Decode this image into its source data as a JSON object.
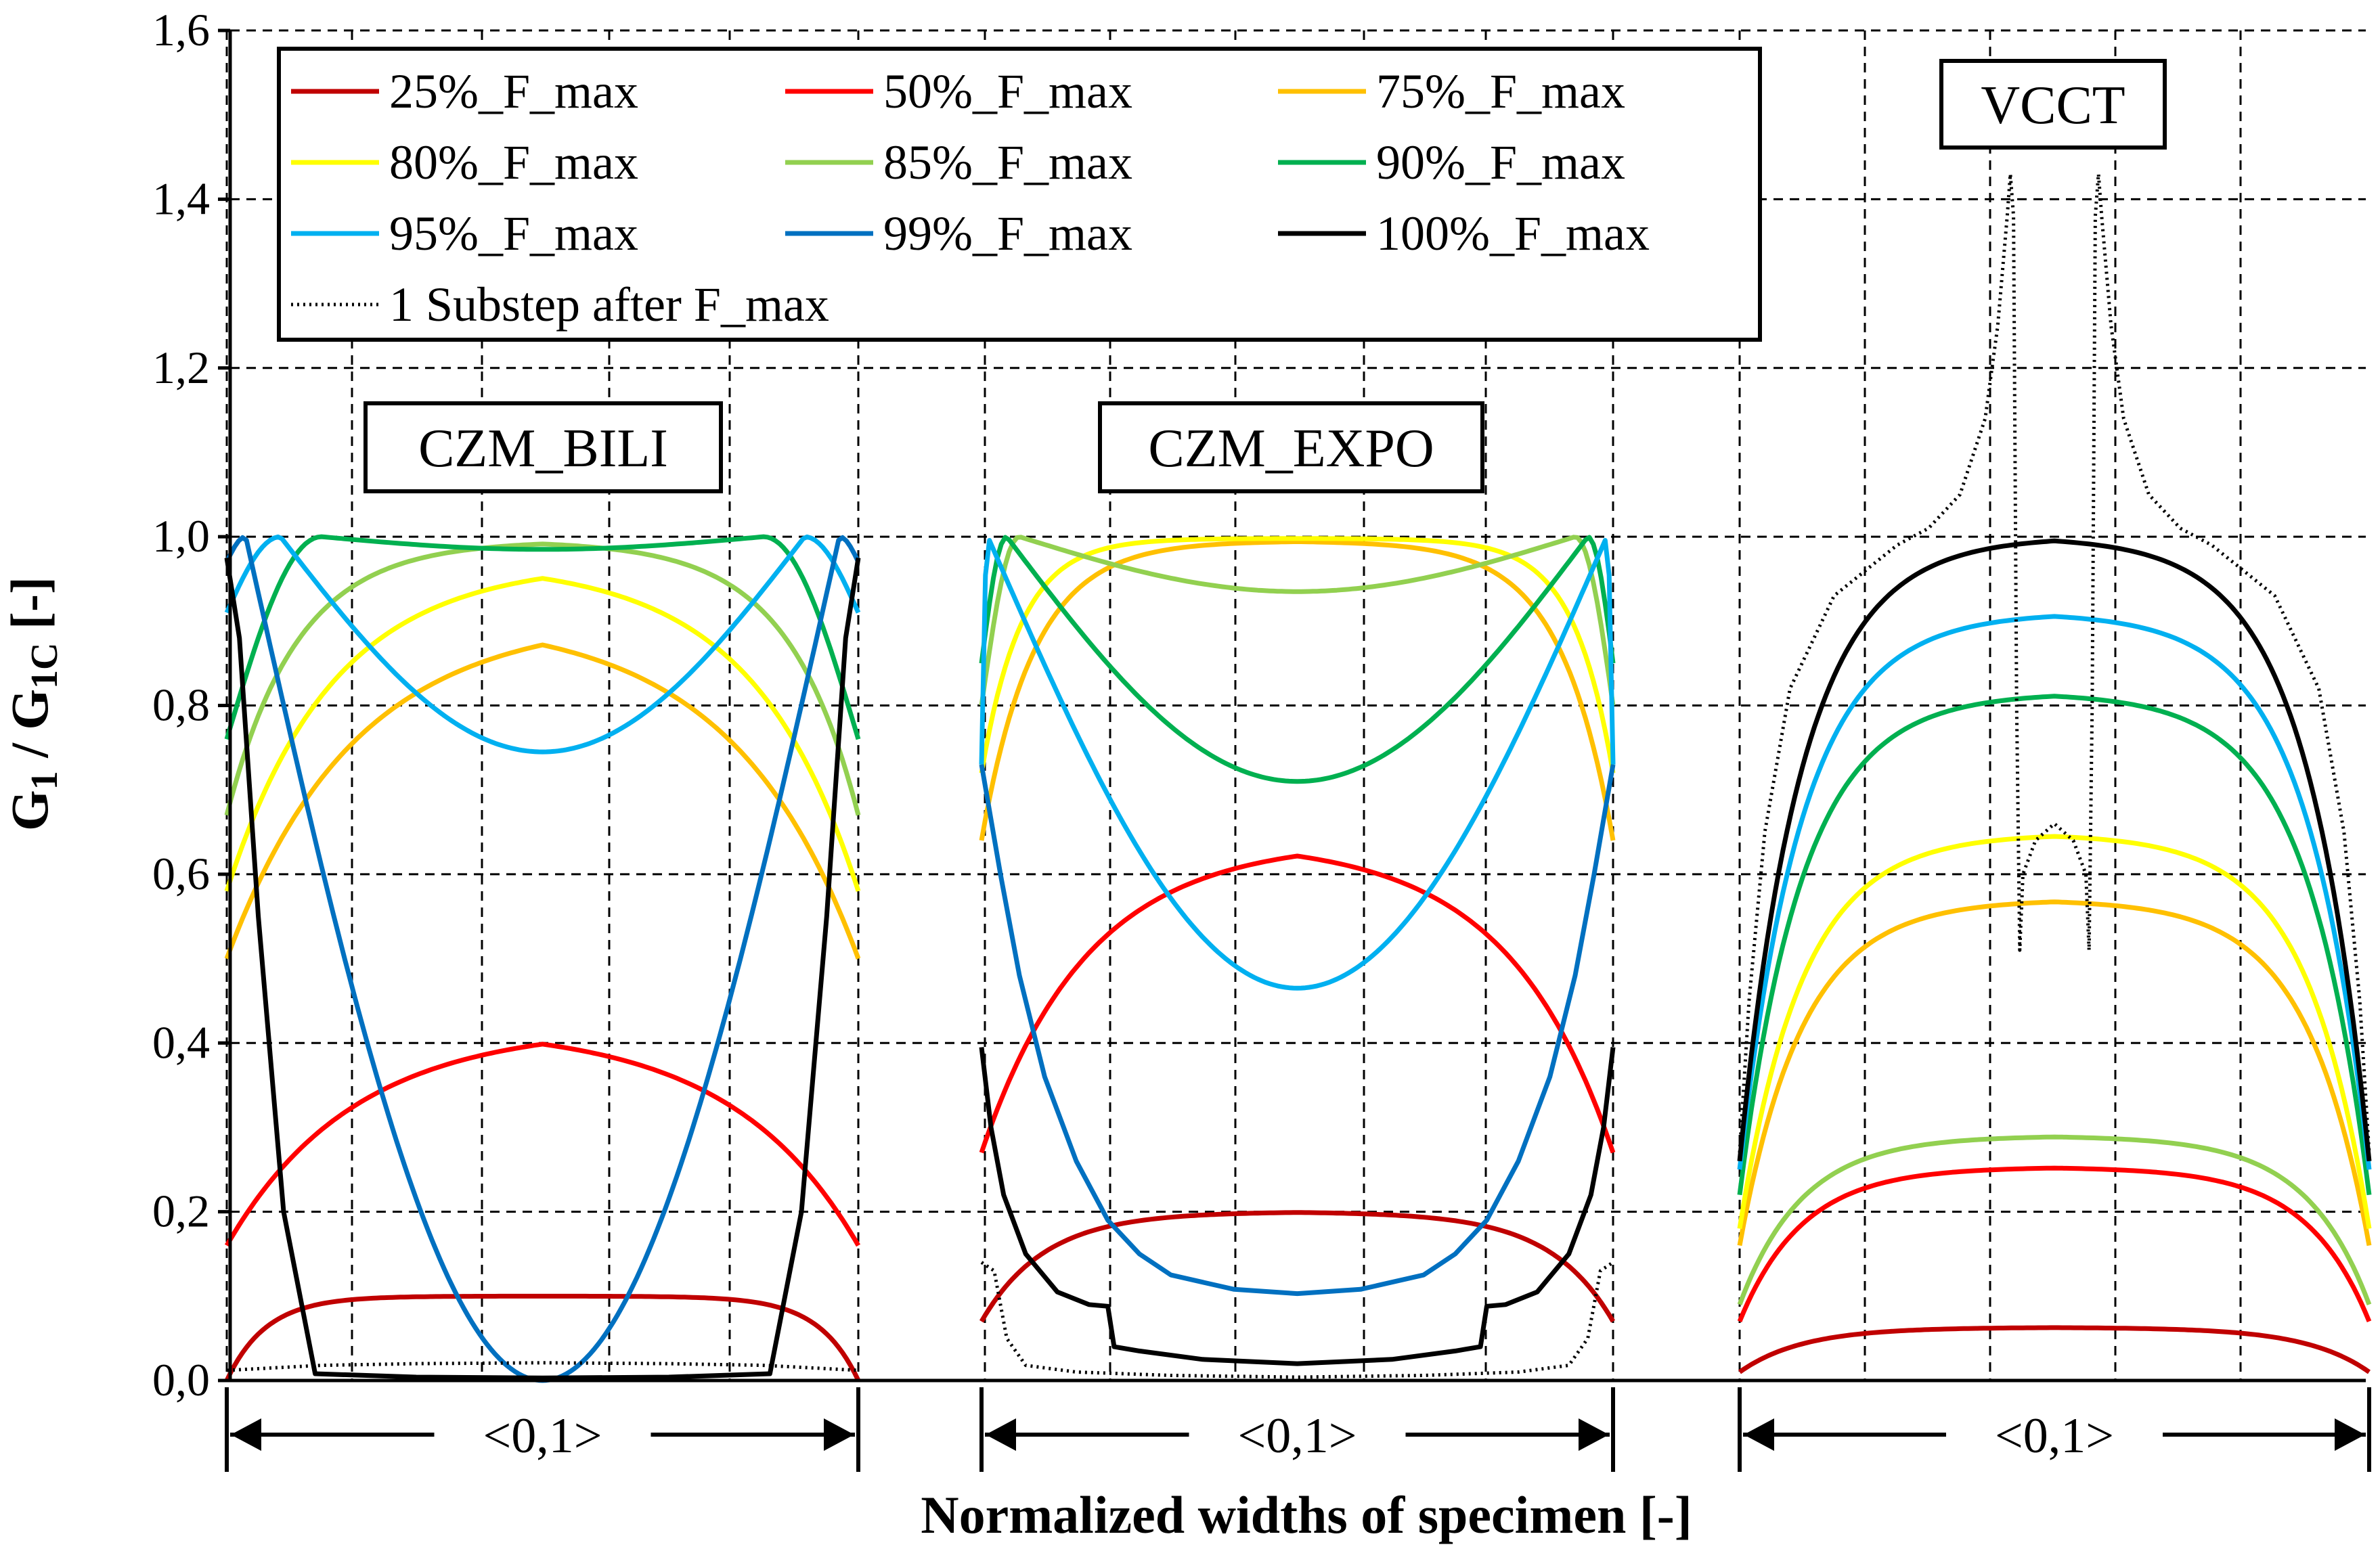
{
  "chart_data": {
    "type": "line",
    "ylabel": {
      "main": "G",
      "sub1": "1",
      "sep": " / G",
      "sub2": "1C",
      "unit": " [-]"
    },
    "xlabel": "Normalized widths of specimen [-]",
    "ylim": [
      0,
      1.6
    ],
    "yticks": [
      "0,0",
      "0,2",
      "0,4",
      "0,6",
      "0,8",
      "1,0",
      "1,2",
      "1,4",
      "1,6"
    ],
    "legend": [
      {
        "key": "s25",
        "label": "25%_F_max",
        "color": "#c00000",
        "dash": "solid"
      },
      {
        "key": "s50",
        "label": "50%_F_max",
        "color": "#ff0000",
        "dash": "solid"
      },
      {
        "key": "s75",
        "label": "75%_F_max",
        "color": "#ffc000",
        "dash": "solid"
      },
      {
        "key": "s80",
        "label": "80%_F_max",
        "color": "#ffff00",
        "dash": "solid"
      },
      {
        "key": "s85",
        "label": "85%_F_max",
        "color": "#92d050",
        "dash": "solid"
      },
      {
        "key": "s90",
        "label": "90%_F_max",
        "color": "#00b050",
        "dash": "solid"
      },
      {
        "key": "s95",
        "label": "95%_F_max",
        "color": "#00b0f0",
        "dash": "solid"
      },
      {
        "key": "s99",
        "label": "99%_F_max",
        "color": "#0070c0",
        "dash": "solid"
      },
      {
        "key": "s100",
        "label": "100%_F_max",
        "color": "#000000",
        "dash": "solid"
      },
      {
        "key": "sub",
        "label": "1 Substep after F_max",
        "color": "#000000",
        "dash": "dotted"
      }
    ],
    "panels": [
      {
        "name": "CZM_BILI",
        "x_range_label": "<0,1>",
        "xlim": [
          0,
          1
        ],
        "series": [
          {
            "key": "s25",
            "profile": "plateau",
            "edge": 0.0,
            "center": 0.1,
            "k": 16
          },
          {
            "key": "s50",
            "profile": "plateau",
            "edge": 0.16,
            "center": 0.42,
            "k": 5
          },
          {
            "key": "s75",
            "profile": "plateau",
            "edge": 0.5,
            "center": 0.905,
            "k": 5
          },
          {
            "key": "s80",
            "profile": "plateau",
            "edge": 0.58,
            "center": 0.97,
            "k": 6
          },
          {
            "key": "s85",
            "profile": "plateau",
            "edge": 0.67,
            "center": 0.995,
            "k": 9
          },
          {
            "key": "s90",
            "profile": "bump",
            "edge": 0.76,
            "center": 0.985,
            "peakPos": 0.15,
            "peak": 1.0
          },
          {
            "key": "s95",
            "profile": "bump",
            "edge": 0.91,
            "center": 0.745,
            "peakPos": 0.085,
            "peak": 1.0
          },
          {
            "key": "s99",
            "profile": "bump",
            "edge": 0.97,
            "center": 0.0,
            "peakPos": 0.03,
            "peak": 1.0
          },
          {
            "key": "s100",
            "profile": "points",
            "points": [
              [
                0,
                0.975
              ],
              [
                0.02,
                0.88
              ],
              [
                0.05,
                0.55
              ],
              [
                0.09,
                0.2
              ],
              [
                0.14,
                0.008
              ],
              [
                0.3,
                0.004
              ],
              [
                0.5,
                0.003
              ],
              [
                0.7,
                0.004
              ],
              [
                0.86,
                0.008
              ],
              [
                0.91,
                0.2
              ],
              [
                0.95,
                0.55
              ],
              [
                0.98,
                0.88
              ],
              [
                1,
                0.975
              ]
            ]
          },
          {
            "key": "sub",
            "profile": "points",
            "points": [
              [
                0,
                0.012
              ],
              [
                0.05,
                0.014
              ],
              [
                0.15,
                0.018
              ],
              [
                0.3,
                0.02
              ],
              [
                0.5,
                0.021
              ],
              [
                0.7,
                0.02
              ],
              [
                0.85,
                0.018
              ],
              [
                0.95,
                0.014
              ],
              [
                1,
                0.012
              ]
            ]
          }
        ]
      },
      {
        "name": "CZM_EXPO",
        "x_range_label": "<0,1>",
        "xlim": [
          0,
          1
        ],
        "series": [
          {
            "key": "s25",
            "profile": "plateau",
            "edge": 0.07,
            "center": 0.2,
            "k": 10
          },
          {
            "key": "s50",
            "profile": "plateau",
            "edge": 0.27,
            "center": 0.64,
            "k": 6
          },
          {
            "key": "s75",
            "profile": "plateau",
            "edge": 0.64,
            "center": 0.995,
            "k": 12
          },
          {
            "key": "s80",
            "profile": "plateau",
            "edge": 0.72,
            "center": 0.998,
            "k": 16
          },
          {
            "key": "s85",
            "profile": "bump",
            "edge": 0.8,
            "center": 0.935,
            "peakPos": 0.06,
            "peak": 1.0
          },
          {
            "key": "s90",
            "profile": "bump",
            "edge": 0.85,
            "center": 0.71,
            "peakPos": 0.04,
            "peak": 1.0
          },
          {
            "key": "s95",
            "profile": "bump",
            "edge": 0.73,
            "center": 0.465,
            "peakPos": 0.01,
            "peak": 1.0
          },
          {
            "key": "s99",
            "profile": "points",
            "points": [
              [
                0,
                0.73
              ],
              [
                0.03,
                0.6
              ],
              [
                0.06,
                0.48
              ],
              [
                0.1,
                0.36
              ],
              [
                0.15,
                0.26
              ],
              [
                0.2,
                0.19
              ],
              [
                0.25,
                0.15
              ],
              [
                0.3,
                0.125
              ],
              [
                0.4,
                0.108
              ],
              [
                0.5,
                0.103
              ],
              [
                0.6,
                0.108
              ],
              [
                0.7,
                0.125
              ],
              [
                0.75,
                0.15
              ],
              [
                0.8,
                0.19
              ],
              [
                0.85,
                0.26
              ],
              [
                0.9,
                0.36
              ],
              [
                0.94,
                0.48
              ],
              [
                0.97,
                0.6
              ],
              [
                1,
                0.73
              ]
            ]
          },
          {
            "key": "s100",
            "profile": "points",
            "points": [
              [
                0,
                0.395
              ],
              [
                0.015,
                0.3
              ],
              [
                0.035,
                0.22
              ],
              [
                0.07,
                0.15
              ],
              [
                0.12,
                0.105
              ],
              [
                0.17,
                0.09
              ],
              [
                0.2,
                0.088
              ],
              [
                0.21,
                0.04
              ],
              [
                0.25,
                0.035
              ],
              [
                0.35,
                0.025
              ],
              [
                0.5,
                0.02
              ],
              [
                0.65,
                0.025
              ],
              [
                0.75,
                0.035
              ],
              [
                0.79,
                0.04
              ],
              [
                0.8,
                0.088
              ],
              [
                0.83,
                0.09
              ],
              [
                0.88,
                0.105
              ],
              [
                0.93,
                0.15
              ],
              [
                0.965,
                0.22
              ],
              [
                0.985,
                0.3
              ],
              [
                1,
                0.395
              ]
            ]
          },
          {
            "key": "sub",
            "profile": "points",
            "points": [
              [
                0,
                0.14
              ],
              [
                0.02,
                0.13
              ],
              [
                0.04,
                0.05
              ],
              [
                0.07,
                0.018
              ],
              [
                0.15,
                0.01
              ],
              [
                0.3,
                0.006
              ],
              [
                0.5,
                0.004
              ],
              [
                0.7,
                0.006
              ],
              [
                0.85,
                0.01
              ],
              [
                0.93,
                0.018
              ],
              [
                0.96,
                0.05
              ],
              [
                0.98,
                0.13
              ],
              [
                1,
                0.14
              ]
            ]
          }
        ]
      },
      {
        "name": "VCCT",
        "x_range_label": "<0,1>",
        "xlim": [
          0,
          1
        ],
        "series": [
          {
            "key": "s25",
            "profile": "plateau",
            "edge": 0.01,
            "center": 0.063,
            "k": 10
          },
          {
            "key": "s50",
            "profile": "plateau",
            "edge": 0.07,
            "center": 0.253,
            "k": 10
          },
          {
            "key": "s85",
            "profile": "plateau",
            "edge": 0.09,
            "center": 0.29,
            "k": 10
          },
          {
            "key": "s75",
            "profile": "plateau",
            "edge": 0.16,
            "center": 0.57,
            "k": 10
          },
          {
            "key": "s80",
            "profile": "plateau",
            "edge": 0.18,
            "center": 0.648,
            "k": 10
          },
          {
            "key": "s90",
            "profile": "plateau",
            "edge": 0.22,
            "center": 0.815,
            "k": 10
          },
          {
            "key": "s95",
            "profile": "plateau",
            "edge": 0.25,
            "center": 0.91,
            "k": 10
          },
          {
            "key": "s100",
            "profile": "plateau",
            "edge": 0.26,
            "center": 1.0,
            "k": 10
          },
          {
            "key": "sub",
            "profile": "points",
            "points": [
              [
                0,
                0.27
              ],
              [
                0.015,
                0.45
              ],
              [
                0.04,
                0.65
              ],
              [
                0.08,
                0.82
              ],
              [
                0.15,
                0.93
              ],
              [
                0.25,
                0.99
              ],
              [
                0.3,
                1.01
              ],
              [
                0.35,
                1.05
              ],
              [
                0.39,
                1.14
              ],
              [
                0.41,
                1.25
              ],
              [
                0.425,
                1.38
              ],
              [
                0.43,
                1.43
              ],
              [
                0.435,
                1.38
              ],
              [
                0.44,
                0.8
              ],
              [
                0.445,
                0.51
              ],
              [
                0.45,
                0.6
              ],
              [
                0.47,
                0.64
              ],
              [
                0.5,
                0.66
              ],
              [
                0.53,
                0.64
              ],
              [
                0.55,
                0.6
              ],
              [
                0.555,
                0.51
              ],
              [
                0.56,
                0.8
              ],
              [
                0.565,
                1.38
              ],
              [
                0.57,
                1.43
              ],
              [
                0.575,
                1.38
              ],
              [
                0.59,
                1.25
              ],
              [
                0.61,
                1.14
              ],
              [
                0.65,
                1.05
              ],
              [
                0.7,
                1.01
              ],
              [
                0.75,
                0.99
              ],
              [
                0.85,
                0.93
              ],
              [
                0.92,
                0.82
              ],
              [
                0.96,
                0.65
              ],
              [
                0.985,
                0.45
              ],
              [
                1,
                0.27
              ]
            ]
          }
        ]
      }
    ]
  }
}
